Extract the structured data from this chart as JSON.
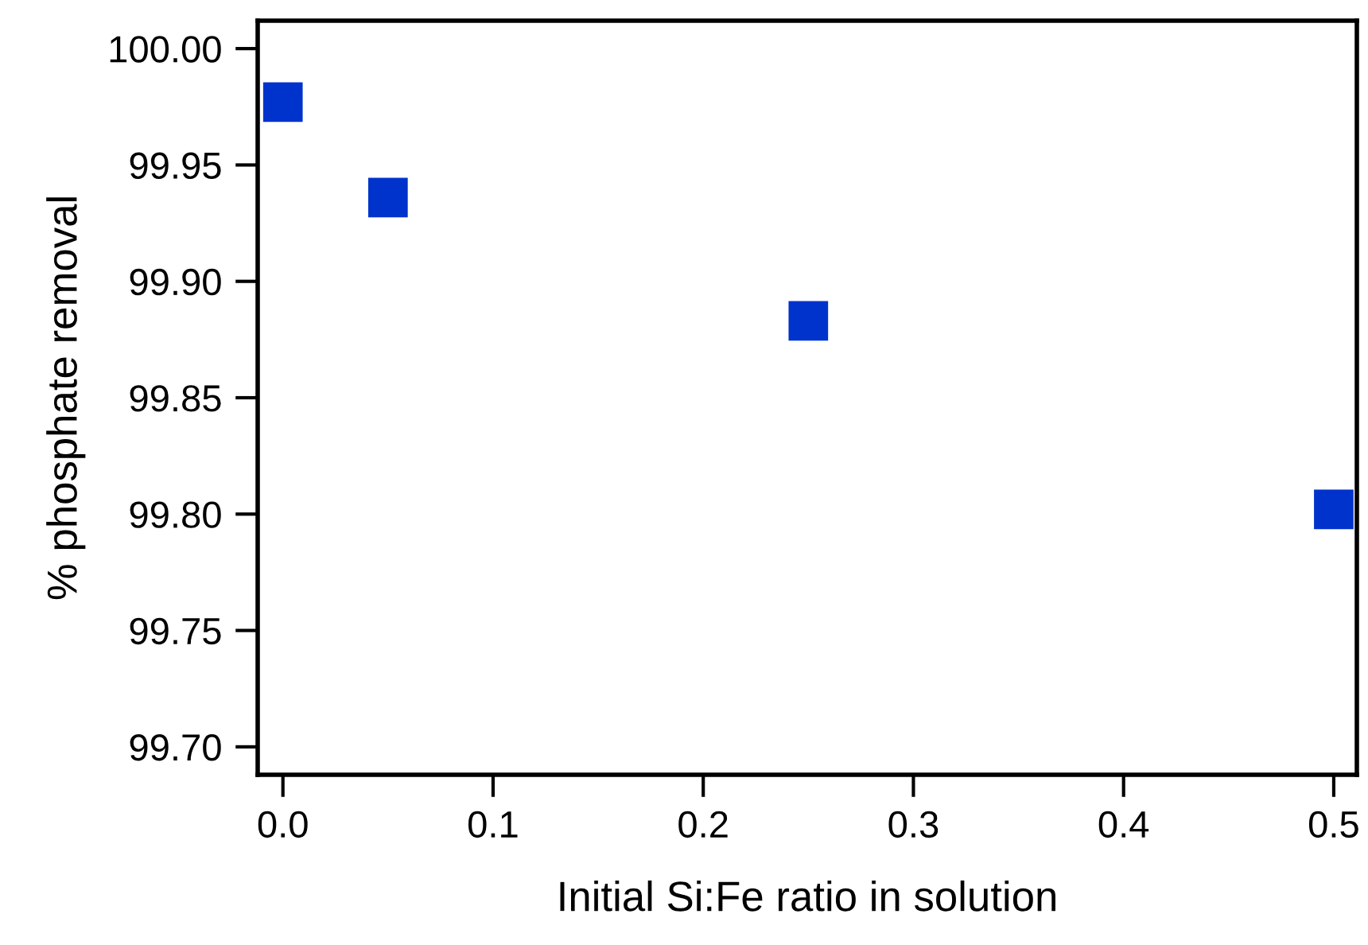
{
  "chart_data": {
    "type": "scatter",
    "xlabel": "Initial Si:Fe ratio in solution",
    "ylabel": "% phosphate removal",
    "x": [
      0,
      0.05,
      0.25,
      0.5
    ],
    "series": [
      {
        "color": "#0033cc",
        "values": [
          99.977,
          99.936,
          99.883,
          99.802
        ]
      }
    ],
    "marker": "square",
    "grid": false,
    "legend": false,
    "xlim": [
      -0.012,
      0.511
    ],
    "ylim": [
      99.688,
      100.012
    ],
    "xticks": [
      {
        "value": 0,
        "label": "0.0"
      },
      0.1,
      0.2,
      0.3,
      0.4,
      0.5
    ],
    "yticks": [
      {
        "value": 99.7,
        "label": "99.70"
      },
      {
        "value": 99.75,
        "label": "99.75"
      },
      {
        "value": 99.8,
        "label": "99.80"
      },
      {
        "value": 99.85,
        "label": "99.85"
      },
      {
        "value": 99.9,
        "label": "99.90"
      },
      {
        "value": 99.95,
        "label": "99.95"
      },
      {
        "value": 100,
        "label": "100.00"
      }
    ]
  }
}
